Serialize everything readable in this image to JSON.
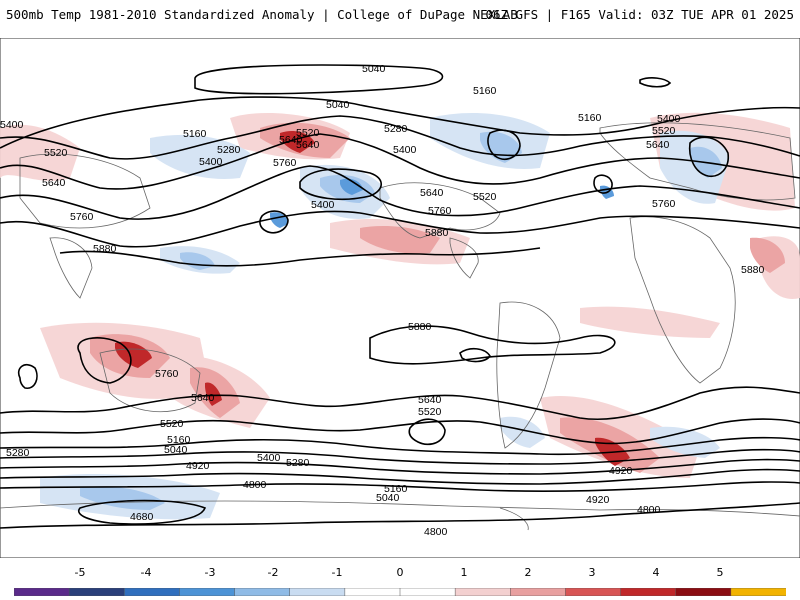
{
  "header": {
    "left_title": "500mb Temp 1981-2010 Standardized Anomaly | College of DuPage NEXLAB",
    "right_title": "06Z GFS | F165 Valid: 03Z TUE APR 01 2025"
  },
  "map": {
    "contour_labels": [
      "5040",
      "5040",
      "5160",
      "5160",
      "5280",
      "5280",
      "5400",
      "5400",
      "5400",
      "5520",
      "5520",
      "5520",
      "5640",
      "5640",
      "5640",
      "5760",
      "5760",
      "5760",
      "5880",
      "5880",
      "5880",
      "5880",
      "5400",
      "5160",
      "5640",
      "5520",
      "5640",
      "5760",
      "5640",
      "5400",
      "5520",
      "5760",
      "5640",
      "5520",
      "5160",
      "5280",
      "5040",
      "4920",
      "5280",
      "5160",
      "5040",
      "4920",
      "4800",
      "4800",
      "4680",
      "4800",
      "4920",
      "5400"
    ],
    "anomaly_colors": {
      "warm_1": "#f6d4d4",
      "warm_2": "#eba4a4",
      "warm_3": "#d95a5a",
      "warm_4": "#c0282a",
      "cool_1": "#d6e4f4",
      "cool_2": "#a8c8ec",
      "cool_3": "#5b9bdb"
    },
    "land_outline_color": "#666666",
    "contour_color": "#000000"
  },
  "colorbar": {
    "ticks": [
      "-5",
      "-4",
      "-3",
      "-2",
      "-1",
      "0",
      "1",
      "2",
      "3",
      "4",
      "5"
    ],
    "colors": [
      "#5a2a8a",
      "#2a3f7a",
      "#2f6fbe",
      "#4c93d6",
      "#8fbbe6",
      "#c9dcf1",
      "#ffffff",
      "#ffffff",
      "#f3d0d0",
      "#e8a0a0",
      "#d85555",
      "#c0282a",
      "#8b0d12",
      "#f2b300"
    ]
  }
}
